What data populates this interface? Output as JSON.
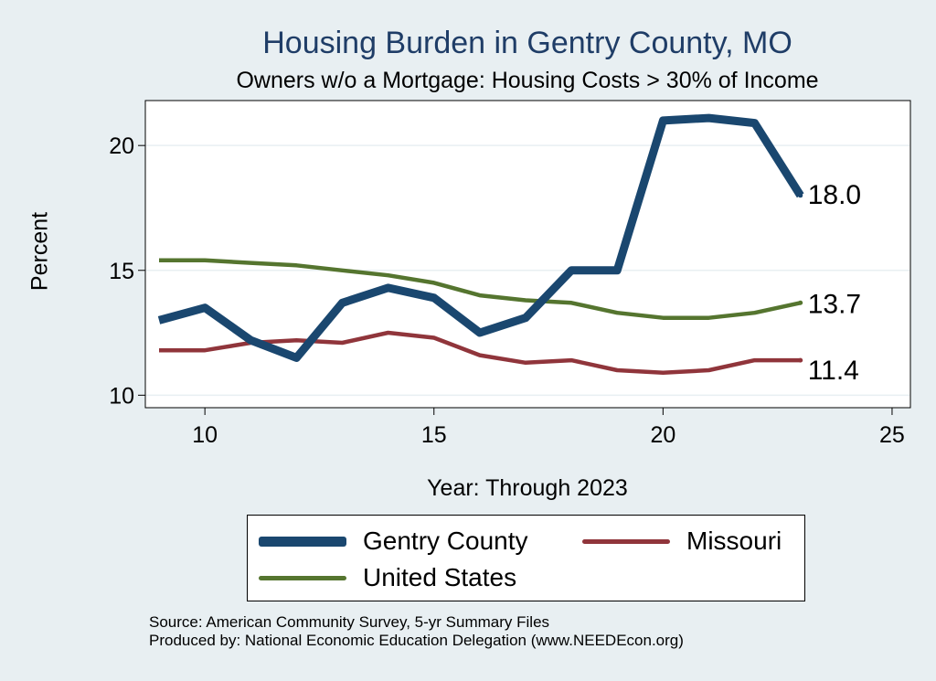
{
  "chart_data": {
    "type": "line",
    "title": "Housing Burden in Gentry County, MO",
    "subtitle": "Owners w/o a Mortgage: Housing Costs > 30% of Income",
    "xlabel": "Year: Through 2023",
    "ylabel": "Percent",
    "xlim": [
      8.7,
      25.4
    ],
    "ylim": [
      9.5,
      21.8
    ],
    "xticks": [
      10,
      15,
      20,
      25
    ],
    "yticks": [
      10,
      15,
      20
    ],
    "grid": true,
    "legend_position": "bottom",
    "x": [
      9,
      10,
      11,
      12,
      13,
      14,
      15,
      16,
      17,
      18,
      19,
      20,
      21,
      22,
      23
    ],
    "series": [
      {
        "name": "Gentry County",
        "color": "#1a476f",
        "width": "thick",
        "values": [
          13.0,
          13.5,
          12.2,
          11.5,
          13.7,
          14.3,
          13.9,
          12.5,
          13.1,
          15.0,
          15.0,
          21.0,
          21.1,
          20.9,
          18.0
        ],
        "end_label": "18.0"
      },
      {
        "name": "Missouri",
        "color": "#90353b",
        "width": "medium",
        "values": [
          11.8,
          11.8,
          12.1,
          12.2,
          12.1,
          12.5,
          12.3,
          11.6,
          11.3,
          11.4,
          11.0,
          10.9,
          11.0,
          11.4,
          11.4
        ],
        "end_label": "11.4"
      },
      {
        "name": "United States",
        "color": "#55752f",
        "width": "medium",
        "values": [
          15.4,
          15.4,
          15.3,
          15.2,
          15.0,
          14.8,
          14.5,
          14.0,
          13.8,
          13.7,
          13.3,
          13.1,
          13.1,
          13.3,
          13.7
        ],
        "end_label": "13.7"
      }
    ]
  },
  "legend": {
    "items": [
      "Gentry County",
      "Missouri",
      "United States"
    ]
  },
  "footer": {
    "source": "Source: American Community Survey, 5-yr Summary Files",
    "produced_by": "Produced by: National Economic Education Delegation (www.NEEDEcon.org)"
  },
  "colors": {
    "background": "#e8eff2",
    "plot_background": "#ffffff",
    "title": "#1f3d67",
    "grid": "#e8eff2"
  }
}
